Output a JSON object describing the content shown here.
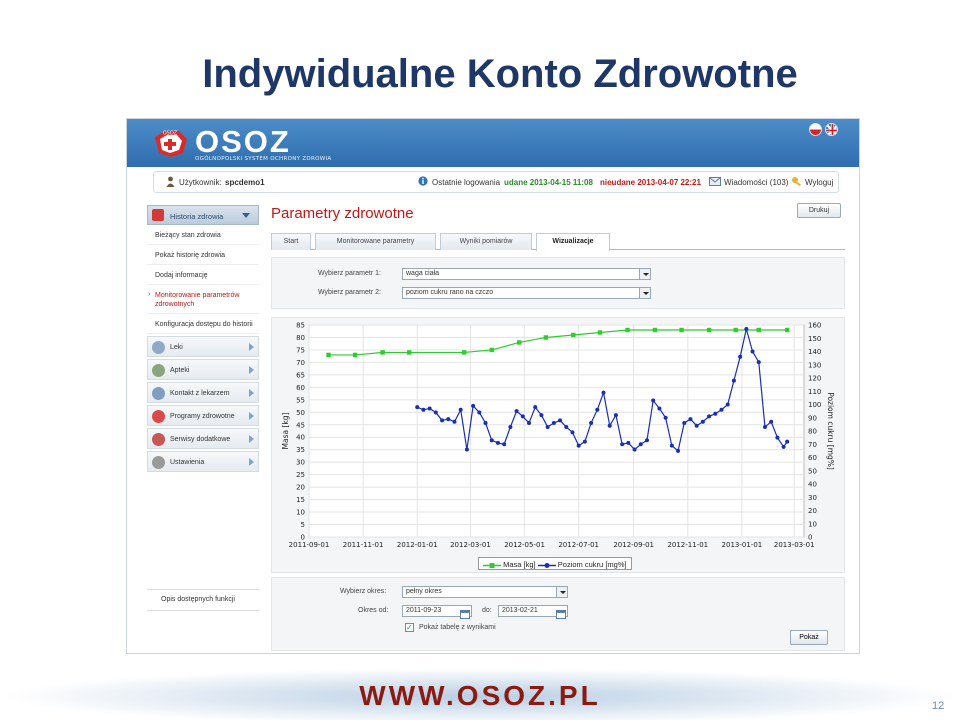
{
  "slide": {
    "title": "Indywidualne Konto Zdrowotne",
    "footer_url": "WWW.OSOZ.PL",
    "page_number": "12"
  },
  "app": {
    "logo_text": "OSOZ",
    "logo_subtitle": "OGÓLNOPOLSKI SYSTEM OCHRONY ZDROWIA",
    "logo_badge": "OSOZ",
    "user_label": "Użytkownik:",
    "user_name": "spcdemo1",
    "last_login_label": "Ostatnie logowania",
    "login_success": "udane 2013-04-15 11:08",
    "login_fail": "nieudane 2013-04-07 22:21",
    "messages": "Wiadomości (103)",
    "logout": "Wyloguj",
    "colors": {
      "topbar": "#3e7fbf",
      "accent_red": "#c01818"
    }
  },
  "sidebar": {
    "active_section": "Historia zdrowia",
    "subitems": [
      "Bieżący stan zdrowia",
      "Pokaż historię zdrowia",
      "Dodaj informację",
      "Monitorowanie parametrów zdrowotnych",
      "Konfiguracja dostępu do historii"
    ],
    "items": [
      {
        "label": "Leki",
        "icon": "pills-icon"
      },
      {
        "label": "Apteki",
        "icon": "pharmacy-icon"
      },
      {
        "label": "Kontakt z lekarzem",
        "icon": "doctor-icon"
      },
      {
        "label": "Programy zdrowotne",
        "icon": "health-program-icon"
      },
      {
        "label": "Serwisy dodatkowe",
        "icon": "services-icon"
      },
      {
        "label": "Ustawienia",
        "icon": "settings-icon"
      }
    ],
    "bottom_link": "Opis dostępnych funkcji"
  },
  "main": {
    "title": "Parametry zdrowotne",
    "print_button": "Drukuj",
    "tabs": [
      "Start",
      "Monitorowane parametry",
      "Wyniki pomiarów",
      "Wizualizacje"
    ],
    "active_tab": "Wizualizacje",
    "param1_label": "Wybierz parametr 1:",
    "param1_value": "waga ciała",
    "param2_label": "Wybierz parametr 2:",
    "param2_value": "poziom cukru rano na czczo",
    "period_label": "Wybierz okres:",
    "period_value": "pełny okres",
    "from_label": "Okres od:",
    "from_value": "2011-09-23",
    "to_label": "do:",
    "to_value": "2013-02-21",
    "table_checkbox": "Pokaż tabelę z wynikami",
    "table_checked": true,
    "show_button": "Pokaż"
  },
  "chart_data": {
    "type": "line",
    "ylabel": "Masa [kg]",
    "y2label": "Poziom cukru [mg%]",
    "ylim": [
      0,
      85
    ],
    "y2lim": [
      0,
      160
    ],
    "yticks": [
      0,
      5,
      10,
      15,
      20,
      25,
      30,
      35,
      40,
      45,
      50,
      55,
      60,
      65,
      70,
      75,
      80,
      85
    ],
    "y2ticks": [
      0,
      10,
      20,
      30,
      40,
      50,
      60,
      70,
      80,
      90,
      100,
      110,
      120,
      130,
      140,
      150,
      160
    ],
    "xticks": [
      "2011-09-01",
      "2011-11-01",
      "2012-01-01",
      "2012-03-01",
      "2012-05-01",
      "2012-07-01",
      "2012-09-01",
      "2012-11-01",
      "2013-01-01",
      "2013-03-01"
    ],
    "xlim": [
      "2011-09-01",
      "2013-03-12"
    ],
    "grid": true,
    "legend": "bottom-center",
    "series": [
      {
        "name": "Masa [kg]",
        "color": "#2ecc2e",
        "marker": "square",
        "axis": "left",
        "points": [
          [
            "2011-09-23",
            73
          ],
          [
            "2011-10-23",
            73
          ],
          [
            "2011-11-23",
            74
          ],
          [
            "2011-12-23",
            74
          ],
          [
            "2012-02-23",
            74
          ],
          [
            "2012-03-25",
            75
          ],
          [
            "2012-04-25",
            78
          ],
          [
            "2012-05-25",
            80
          ],
          [
            "2012-06-25",
            81
          ],
          [
            "2012-07-25",
            82
          ],
          [
            "2012-08-25",
            83
          ],
          [
            "2012-09-25",
            83
          ],
          [
            "2012-10-25",
            83
          ],
          [
            "2012-11-25",
            83
          ],
          [
            "2012-12-25",
            83
          ],
          [
            "2013-01-20",
            83
          ],
          [
            "2013-02-21",
            83
          ]
        ]
      },
      {
        "name": "Poziom cukru [mg%]",
        "color": "#1a2eb8",
        "marker": "circle",
        "axis": "right",
        "points": [
          [
            "2012-01-01",
            98
          ],
          [
            "2012-01-08",
            96
          ],
          [
            "2012-01-15",
            97
          ],
          [
            "2012-01-22",
            94
          ],
          [
            "2012-01-29",
            88
          ],
          [
            "2012-02-05",
            89
          ],
          [
            "2012-02-12",
            87
          ],
          [
            "2012-02-19",
            96
          ],
          [
            "2012-02-26",
            66
          ],
          [
            "2012-03-04",
            99
          ],
          [
            "2012-03-11",
            94
          ],
          [
            "2012-03-18",
            86
          ],
          [
            "2012-03-25",
            73
          ],
          [
            "2012-04-01",
            71
          ],
          [
            "2012-04-08",
            70
          ],
          [
            "2012-04-15",
            83
          ],
          [
            "2012-04-22",
            95
          ],
          [
            "2012-04-29",
            91
          ],
          [
            "2012-05-06",
            86
          ],
          [
            "2012-05-13",
            98
          ],
          [
            "2012-05-20",
            92
          ],
          [
            "2012-05-27",
            83
          ],
          [
            "2012-06-03",
            86
          ],
          [
            "2012-06-10",
            88
          ],
          [
            "2012-06-17",
            83
          ],
          [
            "2012-06-24",
            79
          ],
          [
            "2012-07-01",
            69
          ],
          [
            "2012-07-08",
            72
          ],
          [
            "2012-07-15",
            86
          ],
          [
            "2012-07-22",
            96
          ],
          [
            "2012-07-29",
            109
          ],
          [
            "2012-08-05",
            84
          ],
          [
            "2012-08-12",
            92
          ],
          [
            "2012-08-19",
            70
          ],
          [
            "2012-08-26",
            71
          ],
          [
            "2012-09-02",
            66
          ],
          [
            "2012-09-09",
            70
          ],
          [
            "2012-09-16",
            73
          ],
          [
            "2012-09-23",
            103
          ],
          [
            "2012-09-30",
            97
          ],
          [
            "2012-10-07",
            90
          ],
          [
            "2012-10-14",
            69
          ],
          [
            "2012-10-21",
            65
          ],
          [
            "2012-10-28",
            86
          ],
          [
            "2012-11-04",
            89
          ],
          [
            "2012-11-11",
            84
          ],
          [
            "2012-11-18",
            87
          ],
          [
            "2012-11-25",
            91
          ],
          [
            "2012-12-02",
            93
          ],
          [
            "2012-12-09",
            96
          ],
          [
            "2012-12-16",
            100
          ],
          [
            "2012-12-23",
            118
          ],
          [
            "2012-12-30",
            136
          ],
          [
            "2013-01-06",
            157
          ],
          [
            "2013-01-13",
            140
          ],
          [
            "2013-01-20",
            132
          ],
          [
            "2013-01-27",
            83
          ],
          [
            "2013-02-03",
            87
          ],
          [
            "2013-02-10",
            75
          ],
          [
            "2013-02-17",
            68
          ],
          [
            "2013-02-21",
            72
          ]
        ]
      }
    ]
  }
}
